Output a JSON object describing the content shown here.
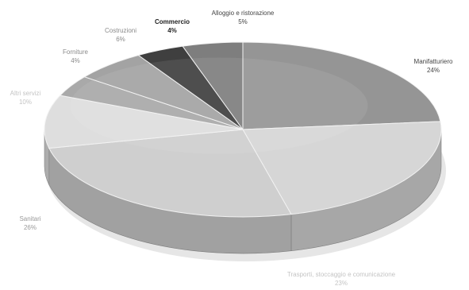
{
  "chart_data": {
    "type": "pie",
    "title": "",
    "colors": {
      "slice_dark": "#3c3c3c",
      "slice_mid": "#8c8c8c",
      "slice_light": "#c2c2c2",
      "slice_pale": "#d8d8d8",
      "label_dark": "#333333",
      "label_light": "#bdbdbd"
    },
    "slices": [
      {
        "label": "Manifatturiero",
        "value_label": "24%",
        "value": 24,
        "fill": "#959595",
        "label_color": "#444444",
        "strong": false
      },
      {
        "label": "Trasporti, stoccaggio e comunicazione",
        "value_label": "23%",
        "value": 23,
        "fill": "#d6d6d6",
        "label_color": "#c4c4c4",
        "strong": false
      },
      {
        "label": "Sanitari",
        "value_label": "26%",
        "value": 26,
        "fill": "#cfcfcf",
        "label_color": "#9a9a9a",
        "strong": false
      },
      {
        "label": "Altri servizi",
        "value_label": "10%",
        "value": 10,
        "fill": "#dedede",
        "label_color": "#c4c4c4",
        "strong": false
      },
      {
        "label": "Forniture",
        "value_label": "4%",
        "value": 4,
        "fill": "#a9a9a9",
        "label_color": "#8a8a8a",
        "strong": false
      },
      {
        "label": "Costruzioni",
        "value_label": "6%",
        "value": 6,
        "fill": "#a3a3a3",
        "label_color": "#8a8a8a",
        "strong": false
      },
      {
        "label": "Commercio",
        "value_label": "4%",
        "value": 4,
        "fill": "#3f3f3f",
        "label_color": "#222222",
        "strong": true
      },
      {
        "label": "Alloggio e ristorazione",
        "value_label": "5%",
        "value": 5,
        "fill": "#7e7e7e",
        "label_color": "#444444",
        "strong": false
      }
    ]
  }
}
